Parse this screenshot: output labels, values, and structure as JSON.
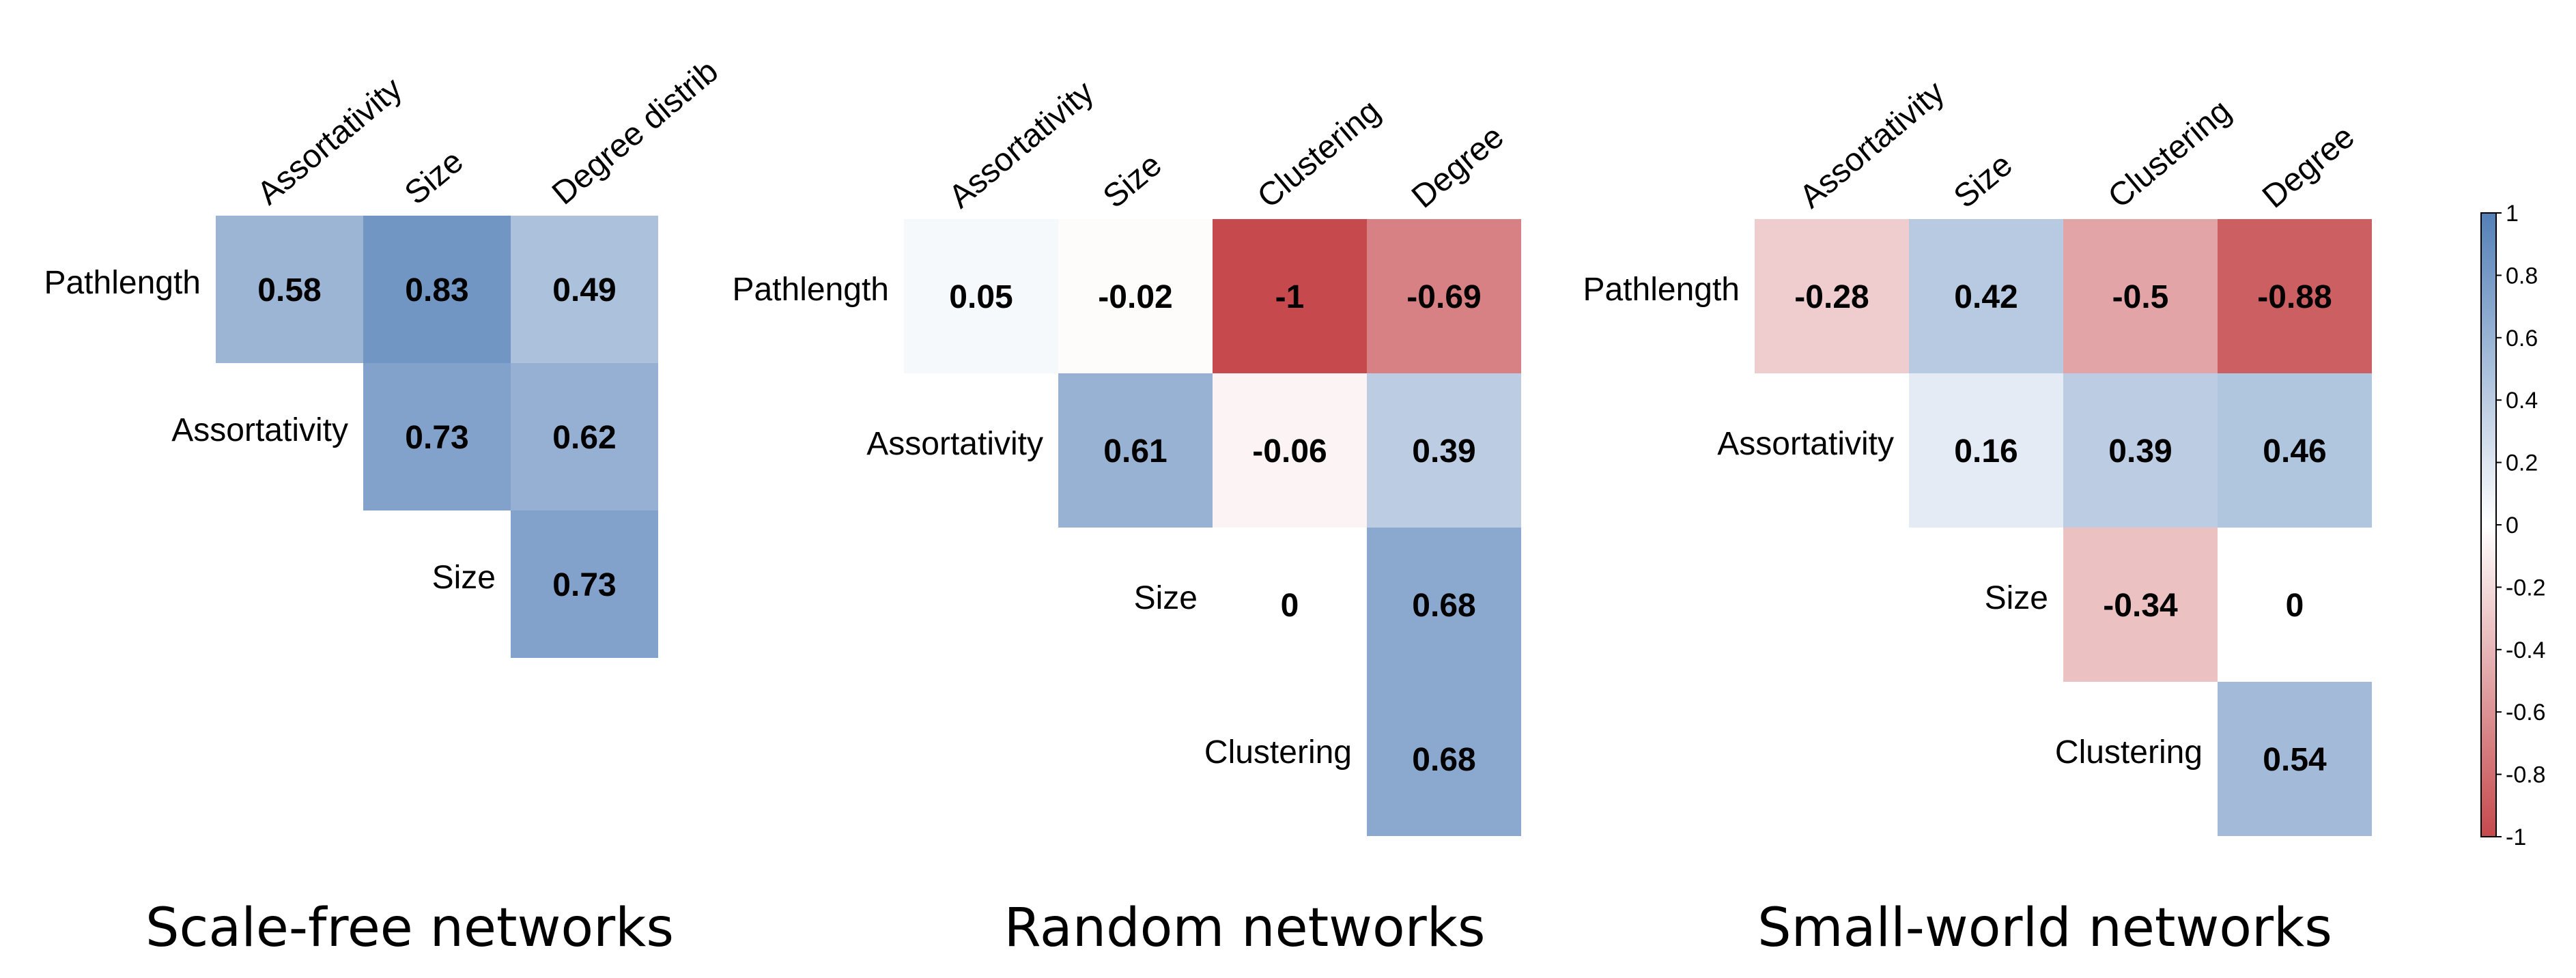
{
  "chart_data": [
    {
      "type": "heatmap",
      "title": "Scale-free networks",
      "columns": [
        "Assortativity",
        "Size",
        "Degree distrib"
      ],
      "rows": [
        "Pathlength",
        "Assortativity",
        "Size"
      ],
      "values": [
        [
          0.58,
          0.83,
          0.49
        ],
        [
          null,
          0.73,
          0.62
        ],
        [
          null,
          null,
          0.73
        ]
      ]
    },
    {
      "type": "heatmap",
      "title": "Random networks",
      "columns": [
        "Assortativity",
        "Size",
        "Clustering",
        "Degree"
      ],
      "rows": [
        "Pathlength",
        "Assortativity",
        "Size",
        "Clustering"
      ],
      "values": [
        [
          0.05,
          -0.02,
          -1,
          -0.69
        ],
        [
          null,
          0.61,
          -0.06,
          0.39
        ],
        [
          null,
          null,
          0,
          0.68
        ],
        [
          null,
          null,
          null,
          0.68
        ]
      ]
    },
    {
      "type": "heatmap",
      "title": "Small-world networks",
      "columns": [
        "Assortativity",
        "Size",
        "Clustering",
        "Degree"
      ],
      "rows": [
        "Pathlength",
        "Assortativity",
        "Size",
        "Clustering"
      ],
      "values": [
        [
          -0.28,
          0.42,
          -0.5,
          -0.88
        ],
        [
          null,
          0.16,
          0.39,
          0.46
        ],
        [
          null,
          null,
          -0.34,
          0
        ],
        [
          null,
          null,
          null,
          0.54
        ]
      ]
    }
  ],
  "colorbar": {
    "range": [
      -1,
      1
    ],
    "ticks": [
      "1",
      "0.8",
      "0.6",
      "0.4",
      "0.2",
      "0",
      "-0.2",
      "-0.4",
      "-0.6",
      "-0.8",
      "-1"
    ],
    "colors": {
      "negative": "#c0393d",
      "neutral": "#ffffff",
      "positive": "#4575b1"
    }
  }
}
